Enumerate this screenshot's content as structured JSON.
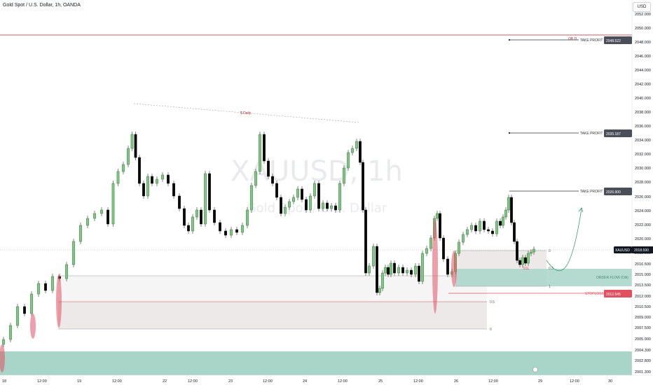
{
  "header": {
    "symbol": "Gold Spot / U.S. Dollar, 1h, OANDA",
    "currency": "USD"
  },
  "watermark": {
    "ticker": "XAUUSD, 1h",
    "name": "Gold Spot / U.S. Dollar"
  },
  "price_axis": {
    "ticks": [
      "2052.000",
      "2050.000",
      "2048.000",
      "2046.000",
      "2044.000",
      "2042.000",
      "2040.000",
      "2038.000",
      "2036.000",
      "2034.000",
      "2032.000",
      "2030.000",
      "2028.000",
      "2026.000",
      "2024.000",
      "2022.000",
      "2020.000",
      "2018.000",
      "2016.500",
      "2015.000",
      "2013.500",
      "2012.000",
      "2010.500",
      "2009.000",
      "2007.500",
      "2005.900",
      "2004.300",
      "2002.800",
      "2001.300"
    ],
    "current_symbol": "XAUUSD",
    "current_price": "2018.590"
  },
  "time_axis": {
    "ticks": [
      "18",
      "12:00",
      "19",
      "12:00",
      "22",
      "12:00",
      "23",
      "12:00",
      "24",
      "12:00",
      "25",
      "12:00",
      "26",
      "12:00",
      "29",
      "12:00",
      "30"
    ]
  },
  "annotations": {
    "tp1_label": "TAKE PROFIT",
    "tp1_price": "2048.522",
    "tp2_label": "TAKE PROFIT",
    "tp2_price": "2035.187",
    "tp3_label": "TAKE PROFIT",
    "tp3_price": "2026.900",
    "stoploss_label": "STOPLOSS",
    "stoploss_price": "2012.545",
    "order_flow": "ORDER FLOW (OA)",
    "ob_label": "OB D",
    "daily_label": "$ Daily",
    "ssl_label": "SSL",
    "fib_left": [
      "1",
      "0.5",
      "0"
    ],
    "fib_right": [
      "0",
      "0.5",
      "1"
    ]
  },
  "colors": {
    "bull": "#2e7d32",
    "bear": "#000000",
    "bull_fill": "#81c784",
    "zone_green": "#a8d5c8",
    "zone_grey": "#ede9e9",
    "red_line": "#b22833",
    "highlight": "#e05060"
  },
  "chart_data": {
    "type": "candlestick",
    "symbol": "XAUUSD",
    "timeframe": "1h",
    "ylim": [
      2001.3,
      2052.0
    ],
    "levels": {
      "take_profit": [
        2048.522,
        2035.187,
        2026.9
      ],
      "stoploss": 2012.545,
      "last": 2018.59
    },
    "candles": []
  }
}
